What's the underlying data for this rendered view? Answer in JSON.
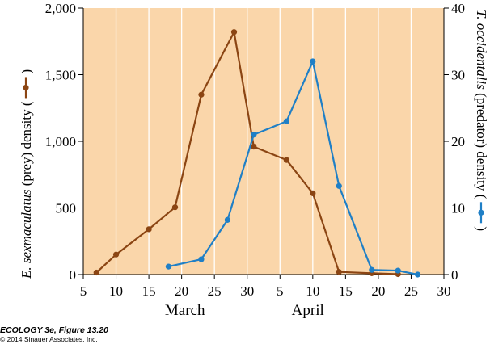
{
  "chart_data": {
    "type": "line",
    "months": [
      "March",
      "April"
    ],
    "x_tick_labels": [
      "5",
      "10",
      "15",
      "20",
      "25",
      "30",
      "5",
      "10",
      "15",
      "20",
      "25",
      "30"
    ],
    "left_axis": {
      "label_parts": [
        "E. sexmaculatus",
        " (prey) density ("
      ],
      "ticks": [
        0,
        500,
        1000,
        1500,
        2000
      ],
      "tick_labels": [
        "0",
        "500",
        "1,000",
        "1,500",
        "2,000"
      ],
      "ylim": [
        0,
        2000
      ]
    },
    "right_axis": {
      "label_parts": [
        "T. occidentalis",
        " (predator) density ("
      ],
      "ticks": [
        0,
        10,
        20,
        30,
        40
      ],
      "tick_labels": [
        "0",
        "10",
        "20",
        "30",
        "40"
      ],
      "ylim": [
        0,
        40
      ]
    },
    "series": [
      {
        "axis": "left",
        "color": "#8b4513",
        "points": [
          {
            "date": "March 7",
            "value": 15
          },
          {
            "date": "March 10",
            "value": 150
          },
          {
            "date": "March 15",
            "value": 340
          },
          {
            "date": "March 19",
            "value": 505
          },
          {
            "date": "March 23",
            "value": 1350
          },
          {
            "date": "March 28",
            "value": 1820
          },
          {
            "date": "March 31",
            "value": 960
          },
          {
            "date": "April 5",
            "value": 860
          },
          {
            "date": "April 9",
            "value": 610
          },
          {
            "date": "April 13",
            "value": 20
          },
          {
            "date": "April 18",
            "value": 10
          },
          {
            "date": "April 22",
            "value": 3
          }
        ]
      },
      {
        "axis": "right",
        "color": "#1f7fc6",
        "points": [
          {
            "date": "March 18",
            "value": 1.2
          },
          {
            "date": "March 23",
            "value": 2.3
          },
          {
            "date": "March 27",
            "value": 8.2
          },
          {
            "date": "March 31",
            "value": 21
          },
          {
            "date": "April 5",
            "value": 23
          },
          {
            "date": "April 9",
            "value": 32
          },
          {
            "date": "April 13",
            "value": 13.3
          },
          {
            "date": "April 18",
            "value": 0.7
          },
          {
            "date": "April 22",
            "value": 0.6
          },
          {
            "date": "April 25",
            "value": 0
          }
        ]
      }
    ],
    "background_color": "#fad6aa",
    "gridlines": "vertical-white"
  },
  "caption": {
    "title": "ECOLOGY 3e, Figure 13.20",
    "copyright": "© 2014 Sinauer Associates, Inc."
  }
}
